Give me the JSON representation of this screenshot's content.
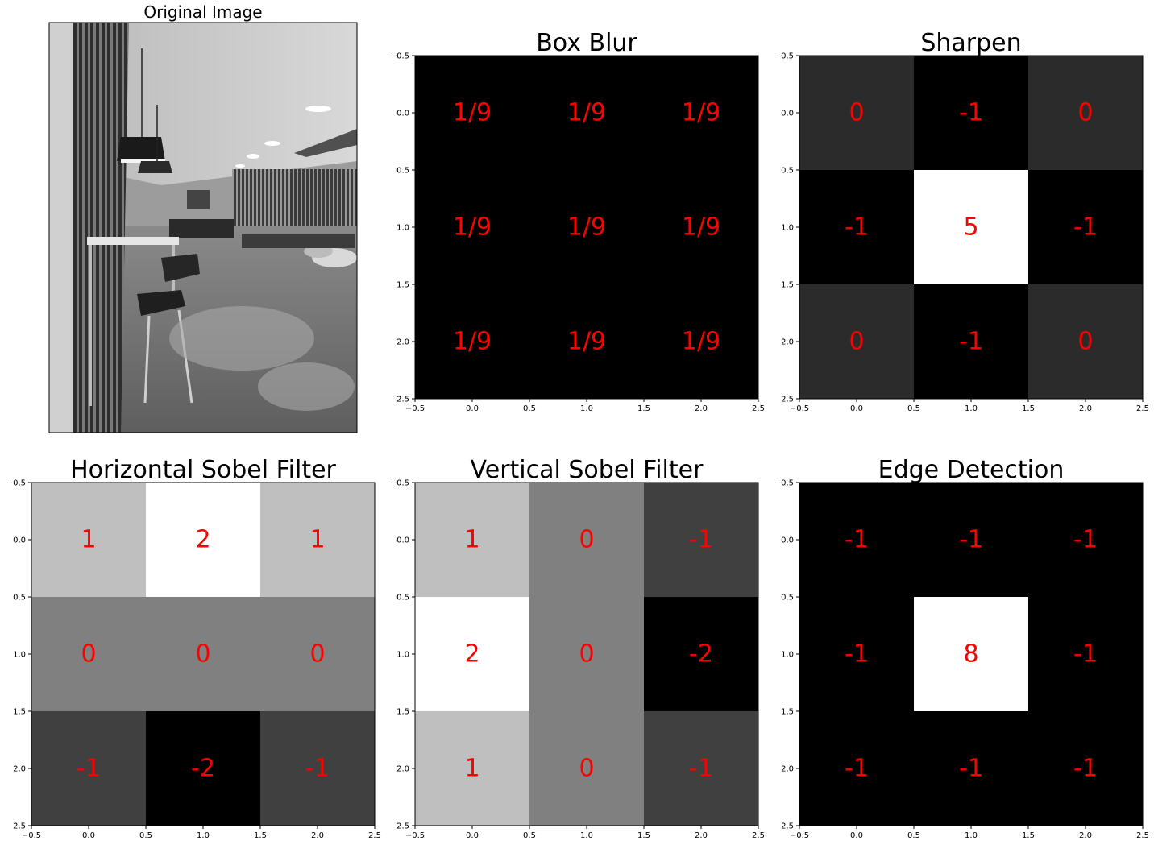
{
  "chart_data": [
    {
      "type": "image",
      "title": "Original Image",
      "description_icon": "office-interior-photo"
    },
    {
      "type": "heatmap",
      "title": "Box Blur",
      "matrix": [
        [
          0.1111,
          0.1111,
          0.1111
        ],
        [
          0.1111,
          0.1111,
          0.1111
        ],
        [
          0.1111,
          0.1111,
          0.1111
        ]
      ],
      "labels": [
        [
          "1/9",
          "1/9",
          "1/9"
        ],
        [
          "1/9",
          "1/9",
          "1/9"
        ],
        [
          "1/9",
          "1/9",
          "1/9"
        ]
      ],
      "xticks": [
        "−0.5",
        "0.0",
        "0.5",
        "1.0",
        "1.5",
        "2.0",
        "2.5"
      ],
      "yticks": [
        "−0.5",
        "0.0",
        "0.5",
        "1.0",
        "1.5",
        "2.0",
        "2.5"
      ],
      "xlim": [
        -0.5,
        2.5
      ],
      "ylim": [
        2.5,
        -0.5
      ],
      "colormap": "gray",
      "label_color": "#ff0000"
    },
    {
      "type": "heatmap",
      "title": "Sharpen",
      "matrix": [
        [
          0,
          -1,
          0
        ],
        [
          -1,
          5,
          -1
        ],
        [
          0,
          -1,
          0
        ]
      ],
      "labels": [
        [
          "0",
          "-1",
          "0"
        ],
        [
          "-1",
          "5",
          "-1"
        ],
        [
          "0",
          "-1",
          "0"
        ]
      ],
      "xticks": [
        "−0.5",
        "0.0",
        "0.5",
        "1.0",
        "1.5",
        "2.0",
        "2.5"
      ],
      "yticks": [
        "−0.5",
        "0.0",
        "0.5",
        "1.0",
        "1.5",
        "2.0",
        "2.5"
      ],
      "xlim": [
        -0.5,
        2.5
      ],
      "ylim": [
        2.5,
        -0.5
      ],
      "colormap": "gray",
      "label_color": "#ff0000"
    },
    {
      "type": "heatmap",
      "title": "Horizontal Sobel Filter",
      "matrix": [
        [
          1,
          2,
          1
        ],
        [
          0,
          0,
          0
        ],
        [
          -1,
          -2,
          -1
        ]
      ],
      "labels": [
        [
          "1",
          "2",
          "1"
        ],
        [
          "0",
          "0",
          "0"
        ],
        [
          "-1",
          "-2",
          "-1"
        ]
      ],
      "xticks": [
        "−0.5",
        "0.0",
        "0.5",
        "1.0",
        "1.5",
        "2.0",
        "2.5"
      ],
      "yticks": [
        "−0.5",
        "0.0",
        "0.5",
        "1.0",
        "1.5",
        "2.0",
        "2.5"
      ],
      "xlim": [
        -0.5,
        2.5
      ],
      "ylim": [
        2.5,
        -0.5
      ],
      "colormap": "gray",
      "label_color": "#ff0000"
    },
    {
      "type": "heatmap",
      "title": "Vertical Sobel Filter",
      "matrix": [
        [
          1,
          0,
          -1
        ],
        [
          2,
          0,
          -2
        ],
        [
          1,
          0,
          -1
        ]
      ],
      "labels": [
        [
          "1",
          "0",
          "-1"
        ],
        [
          "2",
          "0",
          "-2"
        ],
        [
          "1",
          "0",
          "-1"
        ]
      ],
      "xticks": [
        "−0.5",
        "0.0",
        "0.5",
        "1.0",
        "1.5",
        "2.0",
        "2.5"
      ],
      "yticks": [
        "−0.5",
        "0.0",
        "0.5",
        "1.0",
        "1.5",
        "2.0",
        "2.5"
      ],
      "xlim": [
        -0.5,
        2.5
      ],
      "ylim": [
        2.5,
        -0.5
      ],
      "colormap": "gray",
      "label_color": "#ff0000"
    },
    {
      "type": "heatmap",
      "title": "Edge Detection",
      "matrix": [
        [
          -1,
          -1,
          -1
        ],
        [
          -1,
          8,
          -1
        ],
        [
          -1,
          -1,
          -1
        ]
      ],
      "labels": [
        [
          "-1",
          "-1",
          "-1"
        ],
        [
          "-1",
          "8",
          "-1"
        ],
        [
          "-1",
          "-1",
          "-1"
        ]
      ],
      "xticks": [
        "−0.5",
        "0.0",
        "0.5",
        "1.0",
        "1.5",
        "2.0",
        "2.5"
      ],
      "yticks": [
        "−0.5",
        "0.0",
        "0.5",
        "1.0",
        "1.5",
        "2.0",
        "2.5"
      ],
      "xlim": [
        -0.5,
        2.5
      ],
      "ylim": [
        2.5,
        -0.5
      ],
      "colormap": "gray",
      "label_color": "#ff0000"
    }
  ]
}
